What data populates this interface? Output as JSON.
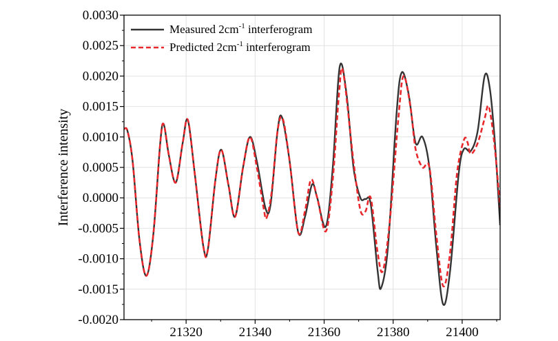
{
  "chart_data": {
    "type": "line",
    "title": "",
    "xlabel": "",
    "ylabel": "Interference intensity",
    "xlim": [
      21302,
      21411
    ],
    "ylim": [
      -0.002,
      0.003
    ],
    "xticks": [
      21320,
      21340,
      21360,
      21380,
      21400
    ],
    "xtick_labels": [
      "21320",
      "21340",
      "21360",
      "21380",
      "21400"
    ],
    "yticks": [
      -0.002,
      -0.0015,
      -0.001,
      -0.0005,
      0.0,
      0.0005,
      0.001,
      0.0015,
      0.002,
      0.0025,
      0.003
    ],
    "ytick_labels": [
      "-0.0020",
      "-0.0015",
      "-0.0010",
      "-0.0005",
      "0.0000",
      "0.0005",
      "0.0010",
      "0.0015",
      "0.0020",
      "0.0025",
      "0.0030"
    ],
    "grid": true,
    "legend_position": "top-left",
    "series": [
      {
        "name": "Measured 2cm-1 interferogram",
        "legend_main": "Measured 2cm",
        "legend_sup": "-1",
        "legend_tail": " interferogram",
        "style": "solid",
        "color": "#333333",
        "points": [
          [
            21302,
            0.00113
          ],
          [
            21303,
            0.0011
          ],
          [
            21304.5,
            0.0006
          ],
          [
            21306.5,
            -0.0007
          ],
          [
            21308.5,
            -0.00128
          ],
          [
            21310.5,
            -0.0006
          ],
          [
            21312.5,
            0.0009
          ],
          [
            21313.5,
            0.00121
          ],
          [
            21315,
            0.0007
          ],
          [
            21317,
            0.00025
          ],
          [
            21319,
            0.0009
          ],
          [
            21320.5,
            0.00128
          ],
          [
            21322.5,
            0.0004
          ],
          [
            21325,
            -0.0008
          ],
          [
            21326.3,
            -0.00085
          ],
          [
            21328.5,
            0.0003
          ],
          [
            21330.2,
            0.00079
          ],
          [
            21332.3,
            0.0002
          ],
          [
            21334.2,
            -0.00031
          ],
          [
            21336.5,
            0.0005
          ],
          [
            21338.5,
            0.001
          ],
          [
            21340.5,
            0.0006
          ],
          [
            21343,
            -0.00017
          ],
          [
            21344.5,
            -0.0001
          ],
          [
            21346.5,
            0.0011
          ],
          [
            21347.8,
            0.00132
          ],
          [
            21350,
            0.0006
          ],
          [
            21352.5,
            -0.00057
          ],
          [
            21354.5,
            -0.0003
          ],
          [
            21356.5,
            0.00022
          ],
          [
            21358,
            0.0
          ],
          [
            21360.5,
            -0.00047
          ],
          [
            21362.5,
            0.0005
          ],
          [
            21364.5,
            0.00215
          ],
          [
            21366.5,
            0.0017
          ],
          [
            21368.5,
            0.0005
          ],
          [
            21370.5,
            0.0
          ],
          [
            21372,
            -2e-05
          ],
          [
            21373.5,
            -0.0001
          ],
          [
            21375.5,
            -0.0012
          ],
          [
            21376.5,
            -0.00148
          ],
          [
            21378.5,
            -0.0008
          ],
          [
            21381,
            0.0014
          ],
          [
            21382.5,
            0.00206
          ],
          [
            21384.5,
            0.0017
          ],
          [
            21386.5,
            0.0009
          ],
          [
            21388.5,
            0.001
          ],
          [
            21390.5,
            0.0005
          ],
          [
            21392.5,
            -0.0008
          ],
          [
            21394.5,
            -0.00175
          ],
          [
            21396.5,
            -0.0012
          ],
          [
            21399,
            0.0004
          ],
          [
            21400.5,
            0.0008
          ],
          [
            21402.5,
            0.00077
          ],
          [
            21404.5,
            0.0011
          ],
          [
            21406.5,
            0.002
          ],
          [
            21408,
            0.0018
          ],
          [
            21409.5,
            0.0009
          ],
          [
            21411,
            -0.00045
          ]
        ]
      },
      {
        "name": "Predicted 2cm-1 interferogram",
        "legend_main": "Predicted 2cm",
        "legend_sup": "-1",
        "legend_tail": " interferogram",
        "style": "dashed",
        "color": "#e8282c",
        "points": [
          [
            21302,
            0.00113
          ],
          [
            21303,
            0.0011
          ],
          [
            21304.5,
            0.0006
          ],
          [
            21306.5,
            -0.0007
          ],
          [
            21308.5,
            -0.00128
          ],
          [
            21310.5,
            -0.0006
          ],
          [
            21312.5,
            0.0009
          ],
          [
            21313.5,
            0.00121
          ],
          [
            21315,
            0.0007
          ],
          [
            21317,
            0.00025
          ],
          [
            21319,
            0.0009
          ],
          [
            21320.5,
            0.00128
          ],
          [
            21322.5,
            0.0004
          ],
          [
            21325,
            -0.0008
          ],
          [
            21326.3,
            -0.00085
          ],
          [
            21328.5,
            0.0003
          ],
          [
            21330.2,
            0.00079
          ],
          [
            21332.3,
            0.0002
          ],
          [
            21334.2,
            -0.00031
          ],
          [
            21336.5,
            0.0005
          ],
          [
            21338.5,
            0.001
          ],
          [
            21340.5,
            0.0005
          ],
          [
            21342.5,
            -0.00018
          ],
          [
            21343.3,
            -0.00033
          ],
          [
            21344.8,
            0.0001
          ],
          [
            21346.5,
            0.0011
          ],
          [
            21348,
            0.0013
          ],
          [
            21350,
            0.0006
          ],
          [
            21352.5,
            -0.00057
          ],
          [
            21354.5,
            -0.0002
          ],
          [
            21356.2,
            0.0003
          ],
          [
            21358,
            0.0
          ],
          [
            21360.5,
            -0.00055
          ],
          [
            21362.5,
            0.0003
          ],
          [
            21364.3,
            0.0017
          ],
          [
            21365.5,
            0.00207
          ],
          [
            21368.5,
            0.0006
          ],
          [
            21370.5,
            -0.0002
          ],
          [
            21372,
            -0.00022
          ],
          [
            21373.5,
            0.0
          ],
          [
            21375.5,
            -0.0009
          ],
          [
            21377,
            -0.0012
          ],
          [
            21379,
            -0.0004
          ],
          [
            21381.5,
            0.0013
          ],
          [
            21383,
            0.002
          ],
          [
            21385,
            0.0015
          ],
          [
            21386.5,
            0.0008
          ],
          [
            21388.5,
            0.0005
          ],
          [
            21390.5,
            0.0005
          ],
          [
            21392.5,
            -0.0006
          ],
          [
            21394.5,
            -0.00145
          ],
          [
            21396.5,
            -0.0009
          ],
          [
            21398.5,
            0.0004
          ],
          [
            21400.5,
            0.00095
          ],
          [
            21401.5,
            0.00092
          ],
          [
            21402.5,
            0.00072
          ],
          [
            21404.5,
            0.0009
          ],
          [
            21406.5,
            0.0013
          ],
          [
            21407.7,
            0.0015
          ],
          [
            21409.3,
            0.0009
          ],
          [
            21411,
            -0.00015
          ]
        ]
      }
    ]
  }
}
